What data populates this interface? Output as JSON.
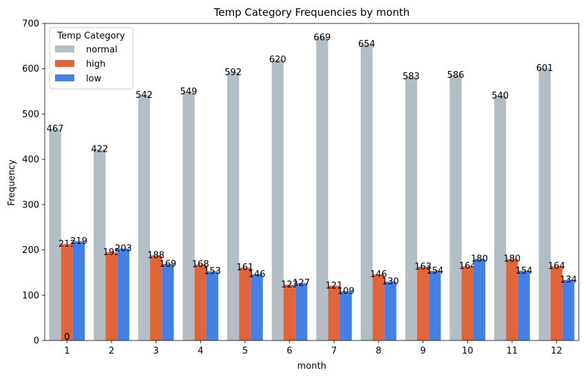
{
  "chart_data": {
    "type": "bar",
    "title": "Temp Category Frequencies by month",
    "xlabel": "month",
    "ylabel": "Frequency",
    "ylim": [
      0,
      700
    ],
    "yticks": [
      0,
      100,
      200,
      300,
      400,
      500,
      600,
      700
    ],
    "categories": [
      "1",
      "2",
      "3",
      "4",
      "5",
      "6",
      "7",
      "8",
      "9",
      "10",
      "11",
      "12"
    ],
    "legend": {
      "title": "Temp Category",
      "placement": "top-left"
    },
    "series": [
      {
        "name": "normal",
        "color": "#b3bec4",
        "values": [
          467,
          422,
          542,
          549,
          592,
          620,
          669,
          654,
          583,
          586,
          540,
          601
        ]
      },
      {
        "name": "high",
        "color": "#e2653a",
        "values": [
          213,
          195,
          188,
          168,
          161,
          123,
          121,
          146,
          163,
          164,
          180,
          164
        ]
      },
      {
        "name": "low",
        "color": "#4481e6",
        "values": [
          219,
          203,
          169,
          153,
          146,
          127,
          109,
          130,
          154,
          180,
          154,
          134
        ]
      }
    ],
    "annotations": [
      "0",
      "0"
    ],
    "grid": false
  }
}
